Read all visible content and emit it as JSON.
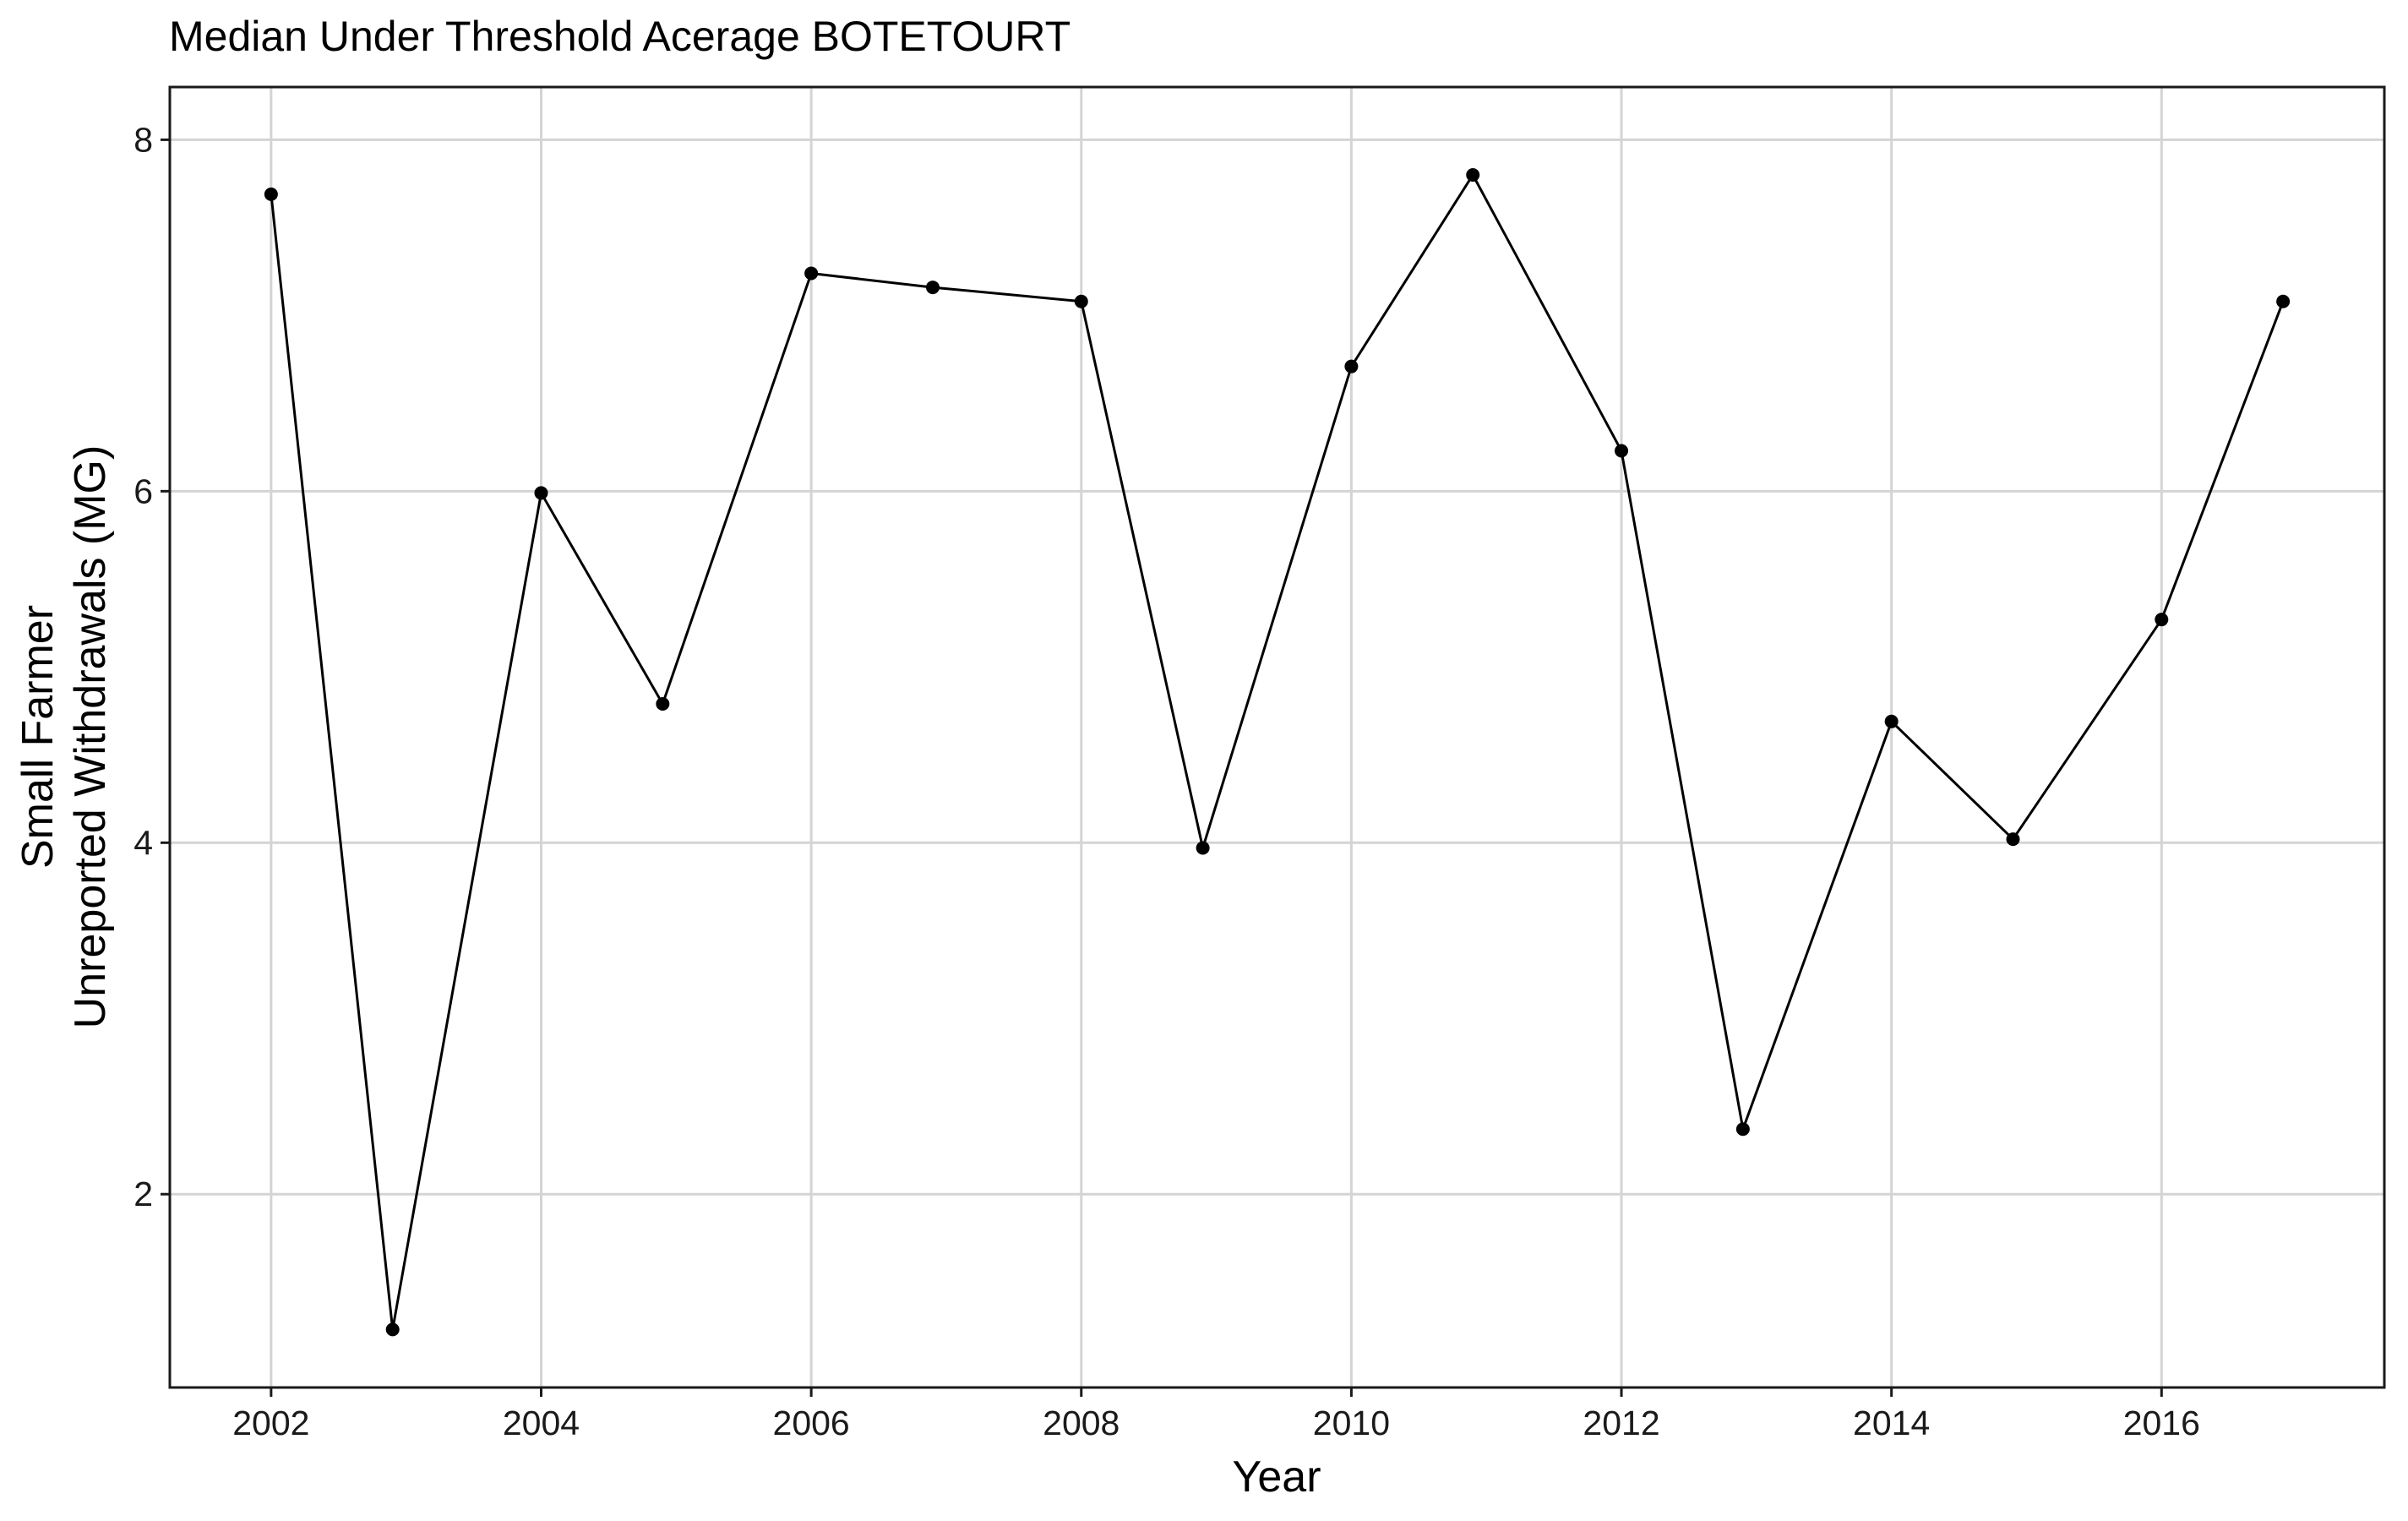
{
  "chart_data": {
    "type": "line",
    "title": "Median Under Threshold Acerage BOTETOURT",
    "xlabel": "Year",
    "ylabel": [
      "Small Farmer",
      "Unreported Withdrawals (MG)"
    ],
    "x": [
      2002.0,
      2002.9,
      2004.0,
      2004.9,
      2006.0,
      2006.9,
      2008.0,
      2008.9,
      2010.0,
      2010.9,
      2012.0,
      2012.9,
      2014.0,
      2014.9,
      2016.0,
      2016.9
    ],
    "values": [
      7.69,
      1.23,
      5.99,
      4.79,
      7.24,
      7.16,
      7.08,
      3.97,
      6.71,
      7.8,
      6.23,
      2.37,
      4.69,
      4.02,
      5.27,
      7.08
    ],
    "xlim": [
      2001.25,
      2017.65
    ],
    "ylim": [
      0.9,
      8.3
    ],
    "xticks": [
      2002,
      2004,
      2006,
      2008,
      2010,
      2012,
      2014,
      2016
    ],
    "yticks": [
      2,
      4,
      6,
      8
    ],
    "grid": true,
    "legend": "none",
    "line_color": "#000000",
    "grid_color": "#d4d4d4"
  }
}
